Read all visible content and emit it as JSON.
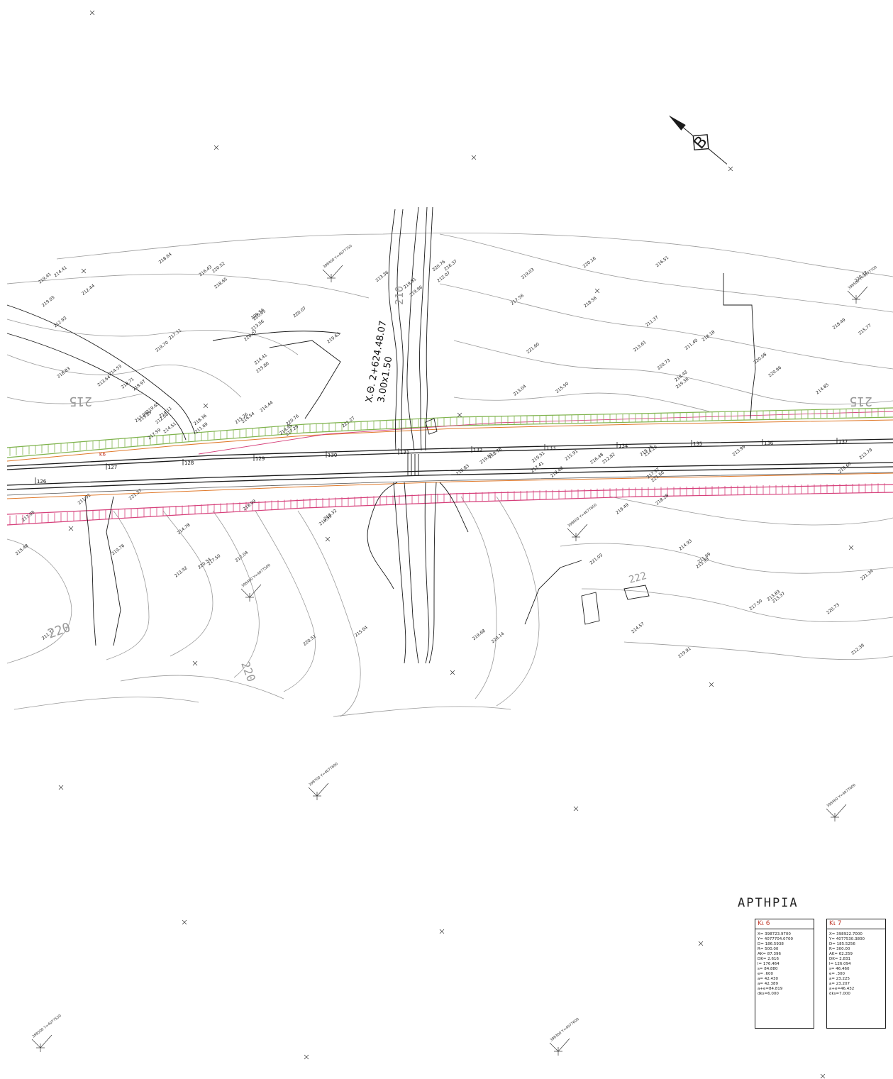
{
  "culvert": {
    "station": "Χ.Θ. 2+624.48.07",
    "size": "3.00x1.50"
  },
  "curve_marks": [
    "Κ6"
  ],
  "contours": [
    "215",
    "215",
    "210",
    "220",
    "220",
    "222"
  ],
  "stations": [
    "126",
    "127",
    "128",
    "129",
    "130",
    "131",
    "132",
    "133",
    "134",
    "135",
    "136",
    "137"
  ],
  "spot_levels": [
    "212.07",
    "212.93",
    "213.61",
    "211.77",
    "211.69",
    "211.69",
    "213.99",
    "216.37",
    "209.54",
    "211.40",
    "211.92",
    "212.39",
    "212.04",
    "213.79",
    "213.36",
    "213.56",
    "213.04",
    "214.78",
    "214.93",
    "214.51",
    "212.82",
    "212.44",
    "213.64",
    "211.37",
    "212.04",
    "213.37",
    "214.11",
    "214.10",
    "214.41",
    "214.41",
    "215.77",
    "213.92",
    "214.57",
    "215.26",
    "215.91",
    "216.51",
    "214.53",
    "214.85",
    "215.04",
    "213.83",
    "214.44",
    "216.48",
    "216.43",
    "215.80",
    "215.50",
    "215.48",
    "215.93",
    "217.59",
    "217.97",
    "219.03",
    "218.83",
    "218.49",
    "217.05",
    "217.50",
    "217.29",
    "218.68",
    "218.64",
    "219.05",
    "218.42",
    "218.32",
    "218.28",
    "218.36",
    "219.81",
    "220.52",
    "220.07",
    "217.56",
    "218.99",
    "219.49",
    "216.54",
    "216.83",
    "219.81",
    "219.97",
    "220.08",
    "219.76",
    "219.68",
    "219.65",
    "219.51",
    "219.41",
    "217.11",
    "219.36",
    "217.50",
    "220.14",
    "220.76",
    "219.60",
    "219.96",
    "219.63",
    "220.73",
    "220.51",
    "219.91",
    "219.45",
    "219.15",
    "220.42",
    "220.07",
    "220.96",
    "220.34",
    "220.73",
    "219.89",
    "221.50",
    "220.16",
    "220.05",
    "221.60",
    "221.37",
    "221.34",
    "217.98",
    "217.41",
    "218.65",
    "218.71",
    "218.18",
    "218.59",
    "221.03",
    "221.27",
    "218.78",
    "220.76",
    "219.70",
    "218.56"
  ],
  "grid_refs": [
    "398400 Y=4077750",
    "398500 Y=4077700",
    "398600 Y=4077650",
    "398700 Y=4077600",
    "398400 Y=4077600",
    "398500 Y=4077550",
    "398300 Y=4077600",
    "398400 Y=4077500"
  ],
  "north_arrow": "B",
  "legend": {
    "title": "ΑΡΤΗΡΙΑ",
    "curves": [
      {
        "name": "Κι 6",
        "rows": [
          "X= 398723.9700",
          "Y= 4077704.0700",
          "D= 186.5938",
          "R= 500.00",
          "AK= 87.396",
          "DK= 2.616",
          "l= 176.464",
          "s= 84.880",
          "e= .600",
          "a= 42.430",
          "a= 42.389",
          "a+e=84.819",
          "dks=6.000"
        ]
      },
      {
        "name": "Κι 7",
        "rows": [
          "X= 398922.7000",
          "Y= 4077530.3800",
          "D= 185.5256",
          "R= 300.00",
          "AK= 62.259",
          "DK= 2.831",
          "l= 126.094",
          "s= 46.460",
          "e= .300",
          "a= 23.225",
          "a= 23.207",
          "a+e=46.432",
          "dks=7.000"
        ]
      }
    ]
  },
  "colors": {
    "line": "#1a1a1a",
    "contour": "#9a9a9a",
    "cut_slope": "#7fb34d",
    "fill_slope": "#d63f7a",
    "road_edge": "#e0792a",
    "curve_label": "#c0392b"
  }
}
